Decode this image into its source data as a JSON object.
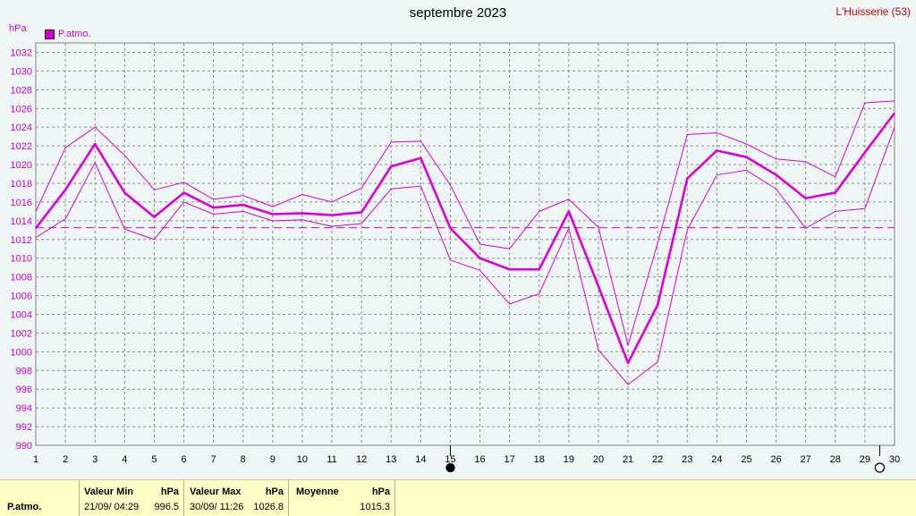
{
  "header": {
    "title": "septembre 2023",
    "location": "L'Huisserie (53)",
    "unit": "hPa",
    "legend_label": "P.atmo."
  },
  "chart_data": {
    "type": "line",
    "x": [
      1,
      2,
      3,
      4,
      5,
      6,
      7,
      8,
      9,
      10,
      11,
      12,
      13,
      14,
      15,
      16,
      17,
      18,
      19,
      20,
      21,
      22,
      23,
      24,
      25,
      26,
      27,
      28,
      29,
      30
    ],
    "xlim": [
      1,
      30
    ],
    "ylim": [
      990,
      1033
    ],
    "y_ticks": [
      990,
      992,
      994,
      996,
      998,
      1000,
      1002,
      1004,
      1006,
      1008,
      1010,
      1012,
      1014,
      1016,
      1018,
      1020,
      1022,
      1024,
      1026,
      1028,
      1030,
      1032
    ],
    "grid": true,
    "legend_position": "top-left",
    "series": [
      {
        "name": "P.atmo.",
        "color": "#dd00dd",
        "values": [
          1013.2,
          1017.3,
          1022.2,
          1017.0,
          1014.4,
          1017.0,
          1015.4,
          1015.7,
          1014.7,
          1014.8,
          1014.6,
          1014.9,
          1019.8,
          1020.7,
          1013.2,
          1010.0,
          1008.8,
          1008.8,
          1015.0,
          1007.0,
          998.8,
          1005.0,
          1018.5,
          1021.5,
          1020.8,
          1018.9,
          1016.4,
          1017.0,
          1021.3,
          1025.5
        ]
      },
      {
        "color": "#dd00dd",
        "values": [
          1015.0,
          1021.8,
          1024.0,
          1021.0,
          1017.3,
          1018.1,
          1016.3,
          1016.7,
          1015.5,
          1016.8,
          1016.0,
          1017.5,
          1022.4,
          1022.5,
          1017.8,
          1011.5,
          1011.0,
          1015.0,
          1016.3,
          1013.3,
          1000.7,
          1011.6,
          1023.2,
          1023.4,
          1022.2,
          1020.6,
          1020.3,
          1018.7,
          1026.6,
          1026.8
        ]
      },
      {
        "color": "#dd00dd",
        "values": [
          1012.2,
          1014.2,
          1020.2,
          1013.1,
          1012.0,
          1016.0,
          1014.7,
          1015.0,
          1014.0,
          1014.1,
          1013.4,
          1013.7,
          1017.4,
          1017.7,
          1009.8,
          1008.7,
          1005.1,
          1006.2,
          1013.2,
          1000.2,
          996.5,
          998.9,
          1013.0,
          1018.9,
          1019.4,
          1017.4,
          1013.2,
          1015.0,
          1015.3,
          1024.0
        ]
      }
    ],
    "reference_line": {
      "value": 1013.25,
      "color": "#dd00dd"
    },
    "moon_markers": [
      {
        "x": 15,
        "phase": "new"
      },
      {
        "x": 29.5,
        "phase": "full"
      }
    ]
  },
  "footer": {
    "series_label": "P.atmo.",
    "min": {
      "header": "Valeur Min",
      "unit": "hPa",
      "datetime": "21/09/  04:29",
      "value": "996.5"
    },
    "max": {
      "header": "Valeur Max",
      "unit": "hPa",
      "datetime": "30/09/  11:26",
      "value": "1026.8"
    },
    "avg": {
      "header": "Moyenne",
      "unit": "hPa",
      "value": "1015.3"
    }
  }
}
